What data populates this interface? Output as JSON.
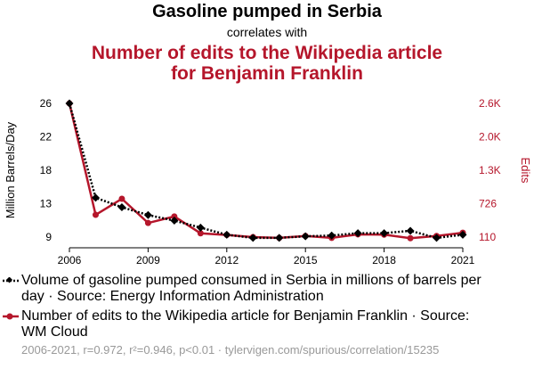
{
  "title": "Gasoline pumped in Serbia",
  "subtitle": "correlates with",
  "title2": "Number of edits to the Wikipedia article for Benjamin Franklin",
  "colors": {
    "series1": "#000000",
    "series2": "#b5162b",
    "legend_text": "#aaaaaa"
  },
  "chart_data": {
    "type": "line",
    "x": [
      2006,
      2007,
      2008,
      2009,
      2010,
      2011,
      2012,
      2013,
      2014,
      2015,
      2016,
      2017,
      2018,
      2019,
      2020,
      2021
    ],
    "xticks": [
      "2006",
      "2009",
      "2012",
      "2015",
      "2018",
      "2021"
    ],
    "xtick_values": [
      2006,
      2009,
      2012,
      2015,
      2018,
      2021
    ],
    "series": [
      {
        "name": "Volume of gasoline pumped consumed in Serbia in millions of barrels per day",
        "axis": "left",
        "values": [
          26,
          14,
          12.8,
          11.8,
          11.1,
          10.2,
          9.3,
          8.9,
          8.9,
          9.1,
          9.2,
          9.5,
          9.5,
          9.8,
          8.9,
          9.3
        ]
      },
      {
        "name": "Number of edits to the Wikipedia article for Benjamin Franklin",
        "axis": "right",
        "values": [
          2600,
          520,
          810,
          370,
          490,
          180,
          150,
          110,
          95,
          130,
          95,
          160,
          155,
          90,
          130,
          190
        ]
      }
    ],
    "left_axis": {
      "label": "Million Barrels/Day",
      "ticks": [
        "26",
        "22",
        "18",
        "13",
        "9"
      ],
      "tick_values": [
        26,
        22,
        18,
        13,
        9
      ],
      "ylim": [
        9,
        26
      ]
    },
    "right_axis": {
      "label": "Edits",
      "ticks": [
        "2.6K",
        "2.0K",
        "1.3K",
        "726",
        "110"
      ],
      "tick_values": [
        2600,
        2000,
        1300,
        726,
        110
      ],
      "ylim": [
        110,
        2600
      ]
    }
  },
  "legend": [
    {
      "text": "Volume of gasoline pumped consumed in Serbia in millions of barrels per day · Source: Energy Information Administration"
    },
    {
      "text": "Number of edits to the Wikipedia article for Benjamin Franklin · Source: WM Cloud"
    }
  ],
  "footer": "2006-2021, r=0.972, r²=0.946, p<0.01 · tylervigen.com/spurious/correlation/15235"
}
